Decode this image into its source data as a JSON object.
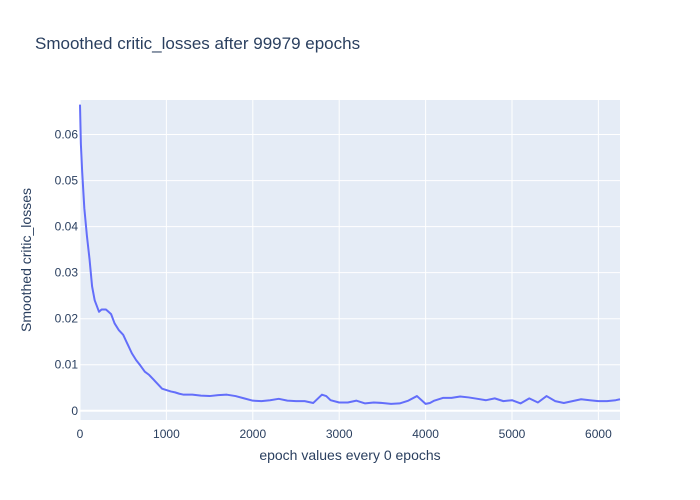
{
  "chart_data": {
    "type": "line",
    "title": "Smoothed critic_losses after 99979 epochs",
    "xlabel": "epoch values every 0 epochs",
    "ylabel": "Smoothed critic_losses",
    "xlim": [
      0,
      6250
    ],
    "ylim": [
      -0.002,
      0.0675
    ],
    "xticks": [
      0,
      1000,
      2000,
      3000,
      4000,
      5000,
      6000
    ],
    "xtick_labels": [
      "0",
      "1000",
      "2000",
      "3000",
      "4000",
      "5000",
      "6000"
    ],
    "yticks": [
      0,
      0.01,
      0.02,
      0.03,
      0.04,
      0.05,
      0.06
    ],
    "ytick_labels": [
      "0",
      "0.01",
      "0.02",
      "0.03",
      "0.04",
      "0.05",
      "0.06"
    ],
    "grid": true,
    "legend": "none",
    "colors": {
      "line": "#636efa",
      "plot_bg": "#e5ecf6",
      "grid": "#ffffff",
      "text": "#2a3f5f"
    },
    "series": [
      {
        "x": [
          0,
          10,
          25,
          50,
          80,
          110,
          140,
          170,
          200,
          220,
          250,
          280,
          300,
          330,
          360,
          400,
          450,
          500,
          550,
          600,
          650,
          700,
          750,
          800,
          850,
          900,
          950,
          1000,
          1050,
          1100,
          1150,
          1200,
          1300,
          1400,
          1500,
          1600,
          1700,
          1800,
          1900,
          2000,
          2100,
          2200,
          2300,
          2400,
          2500,
          2600,
          2700,
          2800,
          2850,
          2900,
          3000,
          3100,
          3200,
          3300,
          3400,
          3500,
          3600,
          3700,
          3800,
          3900,
          4000,
          4050,
          4100,
          4200,
          4300,
          4400,
          4500,
          4600,
          4700,
          4800,
          4900,
          5000,
          5100,
          5200,
          5300,
          5400,
          5500,
          5600,
          5700,
          5800,
          5900,
          6000,
          6100,
          6200,
          6250
        ],
        "y": [
          0.0665,
          0.058,
          0.052,
          0.044,
          0.038,
          0.033,
          0.027,
          0.024,
          0.0225,
          0.0215,
          0.022,
          0.022,
          0.022,
          0.0215,
          0.021,
          0.019,
          0.0175,
          0.0165,
          0.0145,
          0.0125,
          0.011,
          0.0098,
          0.0085,
          0.0078,
          0.0068,
          0.0058,
          0.0048,
          0.0045,
          0.0042,
          0.004,
          0.0037,
          0.0035,
          0.0035,
          0.0033,
          0.0032,
          0.0034,
          0.0035,
          0.0032,
          0.0027,
          0.0022,
          0.0021,
          0.0023,
          0.0026,
          0.0022,
          0.0021,
          0.0021,
          0.0017,
          0.0035,
          0.0032,
          0.0023,
          0.0018,
          0.0018,
          0.0022,
          0.0016,
          0.0018,
          0.0017,
          0.0015,
          0.0016,
          0.0022,
          0.0032,
          0.0015,
          0.0017,
          0.0022,
          0.0028,
          0.0028,
          0.0031,
          0.0029,
          0.0026,
          0.0023,
          0.0027,
          0.0021,
          0.0023,
          0.0016,
          0.0027,
          0.0018,
          0.0032,
          0.0021,
          0.0017,
          0.0021,
          0.0025,
          0.0023,
          0.0021,
          0.0021,
          0.0023,
          0.0025
        ]
      }
    ]
  }
}
